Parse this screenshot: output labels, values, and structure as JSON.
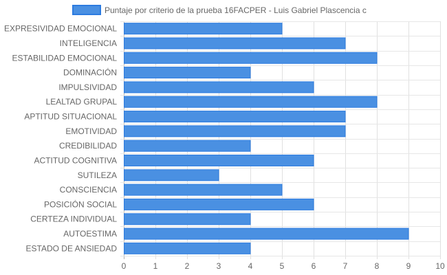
{
  "chart_data": {
    "type": "bar",
    "orientation": "horizontal",
    "title": "",
    "xlabel": "",
    "ylabel": "",
    "xlim": [
      0,
      10
    ],
    "x_ticks": [
      0,
      1,
      2,
      3,
      4,
      5,
      6,
      7,
      8,
      9,
      10
    ],
    "grid": true,
    "legend_position": "top",
    "categories": [
      "EXPRESIVIDAD EMOCIONAL",
      "INTELIGENCIA",
      "ESTABILIDAD EMOCIONAL",
      "DOMINACIÓN",
      "IMPULSIVIDAD",
      "LEALTAD GRUPAL",
      "APTITUD SITUACIONAL",
      "EMOTIVIDAD",
      "CREDIBILIDAD",
      "ACTITUD COGNITIVA",
      "SUTILEZA",
      "CONSCIENCIA",
      "POSICIÓN SOCIAL",
      "CERTEZA INDIVIDUAL",
      "AUTOESTIMA",
      "ESTADO DE ANSIEDAD"
    ],
    "series": [
      {
        "name": "Puntaje por criterio de la prueba 16FACPER - Luis Gabriel Plascencia c",
        "values": [
          5,
          7,
          8,
          4,
          6,
          8,
          7,
          7,
          4,
          6,
          3,
          5,
          6,
          4,
          9,
          4
        ],
        "color": "#4a90e2",
        "border_color": "#2c7be0"
      }
    ]
  }
}
